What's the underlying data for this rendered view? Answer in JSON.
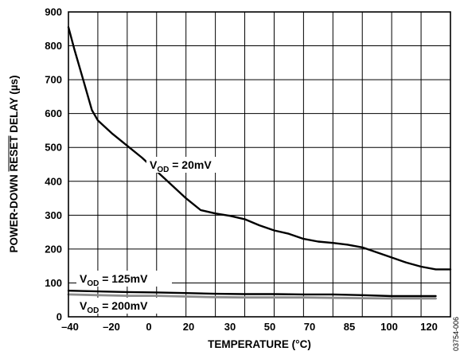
{
  "chart_data": {
    "type": "line",
    "xlabel": "TEMPERATURE (°C)",
    "ylabel": "POWER-DOWN RESET DELAY (µs)",
    "ylabel_parts": {
      "before": "POWER-DOWN ",
      "overlined": "RESET",
      "after": " DELAY (µs)"
    },
    "x_tick_labels": [
      "–40",
      "–20",
      "0",
      "20",
      "30",
      "50",
      "70",
      "85",
      "100",
      "120"
    ],
    "y_ticks": [
      0,
      100,
      200,
      300,
      400,
      500,
      600,
      700,
      800,
      900
    ],
    "ylim": [
      0,
      900
    ],
    "grid": true,
    "figure_id": "03754-006",
    "series": [
      {
        "label_main": "V",
        "label_sub": "OD",
        "label_rest": " = 20mV",
        "color": "#000000",
        "x_index": [
          0,
          0.2,
          0.5,
          0.8,
          1,
          1.5,
          2,
          2.5,
          3,
          3.5,
          4,
          4.5,
          5,
          5.5,
          6,
          6.5,
          7,
          7.5,
          8,
          8.5,
          9,
          9.5,
          10,
          10.5,
          11,
          11.5,
          12,
          12.5,
          13
        ],
        "values": [
          855,
          790,
          700,
          610,
          580,
          540,
          505,
          470,
          430,
          390,
          350,
          315,
          305,
          298,
          288,
          270,
          255,
          245,
          230,
          222,
          218,
          213,
          205,
          190,
          175,
          160,
          148,
          140,
          140
        ]
      },
      {
        "label_main": "V",
        "label_sub": "OD",
        "label_rest": " = 125mV",
        "color": "#000000",
        "x_index": [
          0,
          1,
          2,
          3,
          4,
          5,
          6,
          7,
          8,
          9,
          10,
          11,
          12,
          12.5
        ],
        "values": [
          77,
          75,
          73,
          72,
          70,
          68,
          67,
          67,
          66,
          66,
          64,
          61,
          61,
          61
        ]
      },
      {
        "label_main": "V",
        "label_sub": "OD",
        "label_rest": " = 200mV",
        "color": "#8c8c8c",
        "x_index": [
          0,
          1,
          2,
          3,
          4,
          5,
          6,
          7,
          8,
          9,
          10,
          11,
          12,
          12.5
        ],
        "values": [
          66,
          64,
          62,
          62,
          60,
          58,
          57,
          57,
          57,
          56,
          55,
          54,
          54,
          54
        ]
      }
    ]
  }
}
